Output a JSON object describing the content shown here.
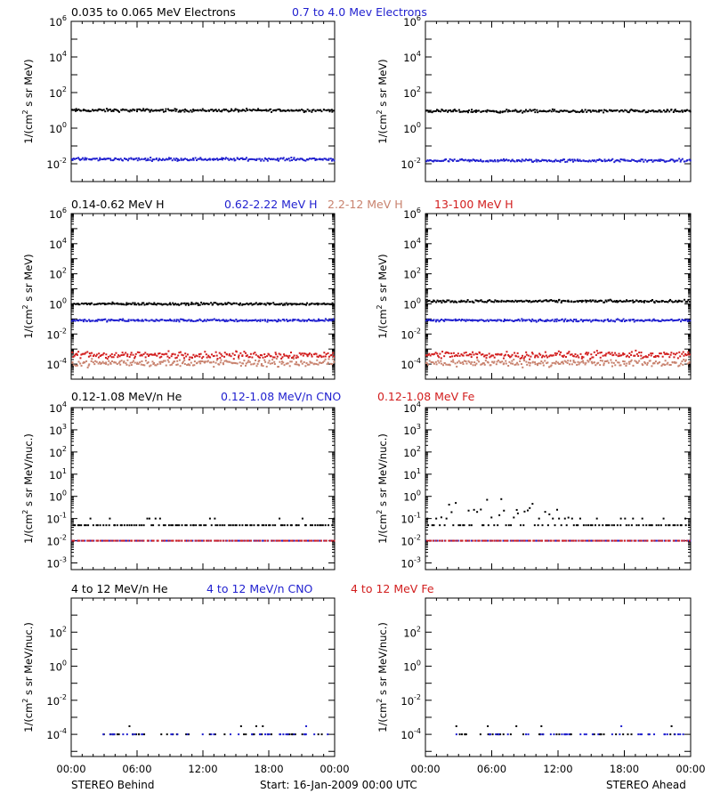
{
  "colors": {
    "black": "#000000",
    "blue": "#1f1fcf",
    "salmon": "#c8826e",
    "red": "#d21e1e"
  },
  "footer": {
    "left": "STEREO Behind",
    "center": "Start: 16-Jan-2009 00:00 UTC",
    "right": "STEREO Ahead"
  },
  "chart_data": [
    {
      "type": "scatter",
      "panel": "electrons",
      "titles": [
        {
          "text": "0.035 to 0.065 MeV Electrons",
          "color": "#000000"
        },
        {
          "text": "0.7 to 4.0 Mev Electrons",
          "color": "#1f1fcf"
        }
      ],
      "ylabel": "1/(cm2 s sr MeV)",
      "ylog": true,
      "ylim": [
        0.001,
        1000000
      ],
      "y_tick_exponents": [
        -2,
        0,
        2,
        4,
        6
      ],
      "xlim_hours": [
        0,
        24
      ],
      "x_ticks": [
        "00:00",
        "06:00",
        "12:00",
        "18:00",
        "00:00"
      ],
      "behind": [
        {
          "name": "0.035 to 0.065 MeV Electrons",
          "color": "#000000",
          "level": 10
        },
        {
          "name": "0.7 to 4.0 Mev Electrons",
          "color": "#1f1fcf",
          "level": 0.018
        }
      ],
      "ahead": [
        {
          "name": "0.035 to 0.065 MeV Electrons",
          "color": "#000000",
          "level": 9
        },
        {
          "name": "0.7 to 4.0 Mev Electrons",
          "color": "#1f1fcf",
          "level": 0.015
        }
      ]
    },
    {
      "type": "scatter",
      "panel": "protons",
      "titles": [
        {
          "text": "0.14-0.62 MeV H",
          "color": "#000000"
        },
        {
          "text": "0.62-2.22 MeV H",
          "color": "#1f1fcf"
        },
        {
          "text": "2.2-12 MeV H",
          "color": "#c8826e"
        },
        {
          "text": "13-100 MeV H",
          "color": "#d21e1e"
        }
      ],
      "ylabel": "1/(cm2 s sr MeV)",
      "ylog": true,
      "ylim": [
        1e-05,
        1000000
      ],
      "y_tick_exponents": [
        -4,
        -2,
        0,
        2,
        4,
        6
      ],
      "xlim_hours": [
        0,
        24
      ],
      "x_ticks": [
        "00:00",
        "06:00",
        "12:00",
        "18:00",
        "00:00"
      ],
      "behind": [
        {
          "name": "0.14-0.62 MeV H",
          "color": "#000000",
          "level": 1.0
        },
        {
          "name": "0.62-2.22 MeV H",
          "color": "#1f1fcf",
          "level": 0.08
        },
        {
          "name": "2.2-12 MeV H",
          "color": "#c8826e",
          "level": 0.00012
        },
        {
          "name": "13-100 MeV H",
          "color": "#d21e1e",
          "level": 0.0004
        }
      ],
      "ahead": [
        {
          "name": "0.14-0.62 MeV H",
          "color": "#000000",
          "level": 1.5
        },
        {
          "name": "0.62-2.22 MeV H",
          "color": "#1f1fcf",
          "level": 0.08
        },
        {
          "name": "2.2-12 MeV H",
          "color": "#c8826e",
          "level": 0.00012
        },
        {
          "name": "13-100 MeV H",
          "color": "#d21e1e",
          "level": 0.0004
        }
      ]
    },
    {
      "type": "scatter",
      "panel": "heavy-low",
      "titles": [
        {
          "text": "0.12-1.08 MeV/n He",
          "color": "#000000"
        },
        {
          "text": "0.12-1.08 MeV/n CNO",
          "color": "#1f1fcf"
        },
        {
          "text": "0.12-1.08 MeV Fe",
          "color": "#d21e1e"
        }
      ],
      "ylabel": "1/(cm2 s sr MeV/nuc.)",
      "ylog": true,
      "ylim": [
        0.0005,
        10000
      ],
      "y_tick_exponents": [
        -3,
        -2,
        -1,
        0,
        1,
        2,
        3,
        4
      ],
      "xlim_hours": [
        0,
        24
      ],
      "x_ticks": [
        "00:00",
        "06:00",
        "12:00",
        "18:00",
        "00:00"
      ],
      "behind": [
        {
          "name": "0.12-1.08 MeV/n He",
          "color": "#000000",
          "level": 0.05
        },
        {
          "name": "0.12-1.08 MeV/n CNO",
          "color": "#1f1fcf",
          "level": 0.01
        },
        {
          "name": "0.12-1.08 MeV Fe",
          "color": "#d21e1e",
          "level": 0.01
        }
      ],
      "ahead": [
        {
          "name": "0.12-1.08 MeV/n He",
          "color": "#000000",
          "level": 0.05
        },
        {
          "name": "0.12-1.08 MeV/n CNO",
          "color": "#1f1fcf",
          "level": 0.01
        },
        {
          "name": "0.12-1.08 MeV Fe",
          "color": "#d21e1e",
          "level": 0.01
        }
      ]
    },
    {
      "type": "scatter",
      "panel": "heavy-high",
      "titles": [
        {
          "text": "4 to 12 MeV/n He",
          "color": "#000000"
        },
        {
          "text": "4 to 12 MeV/n CNO",
          "color": "#1f1fcf"
        },
        {
          "text": "4 to 12 MeV Fe",
          "color": "#d21e1e"
        }
      ],
      "ylabel": "1/(cm2 s sr MeV/nuc.)",
      "ylog": true,
      "ylim": [
        5e-06,
        10000
      ],
      "y_tick_exponents": [
        -4,
        -2,
        0,
        2
      ],
      "xlim_hours": [
        0,
        24
      ],
      "x_ticks": [
        "00:00",
        "06:00",
        "12:00",
        "18:00",
        "00:00"
      ],
      "behind": [
        {
          "name": "4 to 12 MeV/n He",
          "color": "#000000",
          "level": 0.0001
        },
        {
          "name": "4 to 12 MeV/n CNO",
          "color": "#1f1fcf",
          "level": 0.0001
        }
      ],
      "ahead": [
        {
          "name": "4 to 12 MeV/n He",
          "color": "#000000",
          "level": 0.0001
        },
        {
          "name": "4 to 12 MeV/n CNO",
          "color": "#1f1fcf",
          "level": 0.0001
        }
      ]
    }
  ]
}
